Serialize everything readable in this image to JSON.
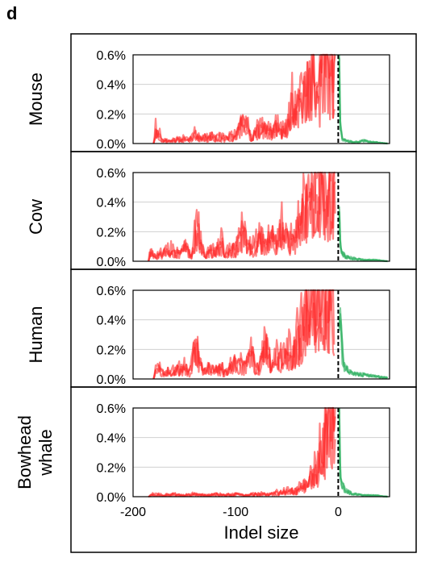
{
  "panel_label": "d",
  "colors": {
    "deletion": "#ff2020",
    "insertion": "#2fb060",
    "zero_line": "#000000",
    "grid": "#d0d0d0"
  },
  "chart_data": [
    {
      "type": "line",
      "ylabel": "Mouse",
      "xlabel": "",
      "xlim": [
        -200,
        50
      ],
      "ylim": [
        0,
        0.6
      ],
      "yticks": [
        "0.0%",
        "0.2%",
        "0.4%",
        "0.6%"
      ],
      "xticks": [],
      "deletion_points": [
        [
          -180,
          0.0
        ],
        [
          -178,
          0.13
        ],
        [
          -172,
          0.03
        ],
        [
          -165,
          0.02
        ],
        [
          -155,
          0.04
        ],
        [
          -145,
          0.03
        ],
        [
          -140,
          0.07
        ],
        [
          -130,
          0.04
        ],
        [
          -120,
          0.05
        ],
        [
          -110,
          0.04
        ],
        [
          -100,
          0.06
        ],
        [
          -92,
          0.19
        ],
        [
          -85,
          0.05
        ],
        [
          -80,
          0.09
        ],
        [
          -75,
          0.14
        ],
        [
          -70,
          0.1
        ],
        [
          -65,
          0.08
        ],
        [
          -60,
          0.13
        ],
        [
          -55,
          0.08
        ],
        [
          -50,
          0.15
        ],
        [
          -45,
          0.3
        ],
        [
          -40,
          0.25
        ],
        [
          -35,
          0.4
        ],
        [
          -30,
          0.45
        ],
        [
          -25,
          0.6
        ],
        [
          -20,
          0.35
        ],
        [
          -15,
          0.6
        ],
        [
          -10,
          0.6
        ],
        [
          -7,
          0.6
        ],
        [
          -5,
          0.6
        ],
        [
          -3,
          0.6
        ]
      ],
      "insertion_points": [
        [
          1,
          0.6
        ],
        [
          2,
          0.15
        ],
        [
          4,
          0.03
        ],
        [
          8,
          0.02
        ],
        [
          15,
          0.01
        ],
        [
          25,
          0.02
        ],
        [
          35,
          0.01
        ],
        [
          48,
          0.0
        ]
      ]
    },
    {
      "type": "line",
      "ylabel": "Cow",
      "xlabel": "",
      "xlim": [
        -200,
        50
      ],
      "ylim": [
        0,
        0.6
      ],
      "yticks": [
        "0.0%",
        "0.2%",
        "0.4%",
        "0.6%"
      ],
      "xticks": [],
      "deletion_points": [
        [
          -185,
          0.0
        ],
        [
          -183,
          0.1
        ],
        [
          -178,
          0.03
        ],
        [
          -172,
          0.06
        ],
        [
          -165,
          0.1
        ],
        [
          -158,
          0.05
        ],
        [
          -150,
          0.12
        ],
        [
          -143,
          0.04
        ],
        [
          -138,
          0.26
        ],
        [
          -130,
          0.05
        ],
        [
          -120,
          0.08
        ],
        [
          -115,
          0.16
        ],
        [
          -110,
          0.06
        ],
        [
          -100,
          0.1
        ],
        [
          -95,
          0.22
        ],
        [
          -85,
          0.09
        ],
        [
          -75,
          0.18
        ],
        [
          -70,
          0.12
        ],
        [
          -65,
          0.2
        ],
        [
          -60,
          0.15
        ],
        [
          -55,
          0.25
        ],
        [
          -48,
          0.15
        ],
        [
          -42,
          0.18
        ],
        [
          -38,
          0.28
        ],
        [
          -35,
          0.35
        ],
        [
          -30,
          0.45
        ],
        [
          -27,
          0.6
        ],
        [
          -22,
          0.4
        ],
        [
          -18,
          0.6
        ],
        [
          -12,
          0.4
        ],
        [
          -8,
          0.55
        ],
        [
          -5,
          0.6
        ],
        [
          -3,
          0.6
        ]
      ],
      "insertion_points": [
        [
          1,
          0.6
        ],
        [
          2,
          0.12
        ],
        [
          4,
          0.06
        ],
        [
          8,
          0.03
        ],
        [
          15,
          0.02
        ],
        [
          25,
          0.01
        ],
        [
          35,
          0.01
        ],
        [
          48,
          0.0
        ]
      ]
    },
    {
      "type": "line",
      "ylabel": "Human",
      "xlabel": "",
      "xlim": [
        -200,
        50
      ],
      "ylim": [
        0,
        0.6
      ],
      "yticks": [
        "0.0%",
        "0.2%",
        "0.4%",
        "0.6%"
      ],
      "xticks": [],
      "deletion_points": [
        [
          -180,
          0.0
        ],
        [
          -178,
          0.1
        ],
        [
          -170,
          0.04
        ],
        [
          -160,
          0.06
        ],
        [
          -150,
          0.09
        ],
        [
          -145,
          0.05
        ],
        [
          -140,
          0.25
        ],
        [
          -132,
          0.06
        ],
        [
          -125,
          0.1
        ],
        [
          -115,
          0.08
        ],
        [
          -110,
          0.05
        ],
        [
          -100,
          0.13
        ],
        [
          -90,
          0.09
        ],
        [
          -85,
          0.22
        ],
        [
          -80,
          0.08
        ],
        [
          -75,
          0.13
        ],
        [
          -70,
          0.28
        ],
        [
          -65,
          0.09
        ],
        [
          -60,
          0.2
        ],
        [
          -55,
          0.14
        ],
        [
          -50,
          0.25
        ],
        [
          -45,
          0.15
        ],
        [
          -40,
          0.3
        ],
        [
          -35,
          0.38
        ],
        [
          -30,
          0.5
        ],
        [
          -25,
          0.6
        ],
        [
          -20,
          0.6
        ],
        [
          -15,
          0.6
        ],
        [
          -10,
          0.6
        ],
        [
          -7,
          0.6
        ],
        [
          -4,
          0.6
        ]
      ],
      "insertion_points": [
        [
          1,
          0.6
        ],
        [
          2,
          0.4
        ],
        [
          4,
          0.2
        ],
        [
          6,
          0.1
        ],
        [
          10,
          0.06
        ],
        [
          15,
          0.04
        ],
        [
          25,
          0.03
        ],
        [
          35,
          0.02
        ],
        [
          48,
          0.01
        ]
      ]
    },
    {
      "type": "line",
      "ylabel": "Bowhead whale",
      "xlabel": "Indel size",
      "xlim": [
        -200,
        50
      ],
      "ylim": [
        0,
        0.6
      ],
      "yticks": [
        "0.0%",
        "0.2%",
        "0.4%",
        "0.6%"
      ],
      "xticks": [
        "-200",
        "-100",
        "0"
      ],
      "deletion_points": [
        [
          -185,
          0.0
        ],
        [
          -180,
          0.02
        ],
        [
          -170,
          0.01
        ],
        [
          -160,
          0.02
        ],
        [
          -150,
          0.01
        ],
        [
          -140,
          0.02
        ],
        [
          -130,
          0.01
        ],
        [
          -120,
          0.02
        ],
        [
          -110,
          0.01
        ],
        [
          -100,
          0.02
        ],
        [
          -90,
          0.01
        ],
        [
          -80,
          0.02
        ],
        [
          -70,
          0.02
        ],
        [
          -60,
          0.03
        ],
        [
          -50,
          0.04
        ],
        [
          -40,
          0.05
        ],
        [
          -35,
          0.08
        ],
        [
          -30,
          0.1
        ],
        [
          -25,
          0.15
        ],
        [
          -20,
          0.25
        ],
        [
          -15,
          0.4
        ],
        [
          -12,
          0.5
        ],
        [
          -10,
          0.6
        ],
        [
          -7,
          0.6
        ],
        [
          -4,
          0.55
        ],
        [
          -3,
          0.6
        ]
      ],
      "insertion_points": [
        [
          1,
          0.6
        ],
        [
          2,
          0.2
        ],
        [
          4,
          0.08
        ],
        [
          8,
          0.04
        ],
        [
          15,
          0.02
        ],
        [
          25,
          0.01
        ],
        [
          35,
          0.01
        ],
        [
          48,
          0.0
        ]
      ]
    }
  ]
}
